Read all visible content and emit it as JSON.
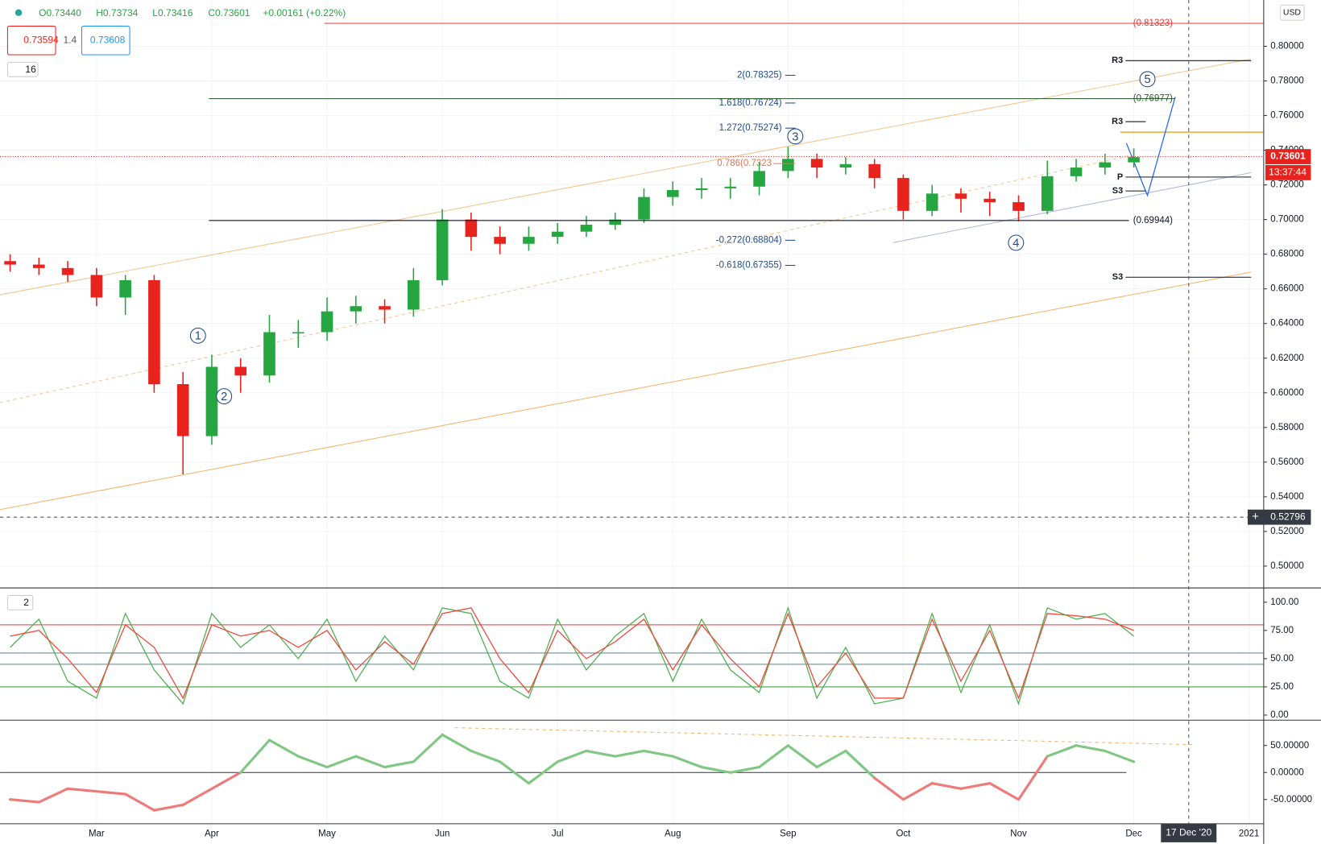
{
  "toolbar": {
    "ohlc": [
      "O0.73440",
      "H0.73734",
      "L0.73416",
      "C0.73601",
      "+0.00161 (+0.22%)"
    ],
    "legend": [
      "0.73594",
      "1.4",
      "0.73608"
    ],
    "main_indicator": "16",
    "stoch_indicator": "2",
    "currency": "USD",
    "last_price": "0.73601",
    "countdown": "13:37:44",
    "crosshair_price": "0.52796",
    "crosshair_date": "17 Dec '20"
  },
  "chart_data": [
    {
      "type": "candlestick",
      "categories": [
        null,
        null,
        null,
        "Mar",
        null,
        null,
        null,
        "Apr",
        null,
        null,
        null,
        "May",
        null,
        null,
        null,
        "Jun",
        null,
        null,
        null,
        "Jul",
        null,
        null,
        null,
        "Aug",
        null,
        null,
        null,
        "Sep",
        null,
        null,
        null,
        "Oct",
        null,
        null,
        null,
        "Nov",
        null,
        null,
        null,
        "Dec",
        null,
        null,
        null,
        "2021"
      ],
      "open": [
        0.676,
        0.674,
        0.672,
        0.668,
        0.655,
        0.665,
        0.605,
        0.575,
        0.615,
        0.61,
        0.635,
        0.635,
        0.647,
        0.65,
        0.648,
        0.665,
        0.7,
        0.69,
        0.686,
        0.69,
        0.693,
        0.697,
        0.7,
        0.713,
        0.717,
        0.718,
        0.719,
        0.728,
        0.735,
        0.73,
        0.732,
        0.724,
        0.705,
        0.715,
        0.712,
        0.71,
        0.705,
        0.725,
        0.73,
        0.733,
        null,
        null,
        null,
        null
      ],
      "high": [
        0.68,
        0.678,
        0.676,
        0.672,
        0.668,
        0.668,
        0.612,
        0.622,
        0.62,
        0.645,
        0.642,
        0.655,
        0.656,
        0.654,
        0.672,
        0.706,
        0.704,
        0.696,
        0.696,
        0.698,
        0.702,
        0.704,
        0.718,
        0.722,
        0.724,
        0.724,
        0.733,
        0.742,
        0.738,
        0.736,
        0.735,
        0.726,
        0.72,
        0.718,
        0.716,
        0.714,
        0.734,
        0.735,
        0.738,
        0.741,
        null,
        null,
        null,
        null
      ],
      "low": [
        0.67,
        0.668,
        0.664,
        0.65,
        0.645,
        0.6,
        0.553,
        0.57,
        0.6,
        0.606,
        0.626,
        0.63,
        0.64,
        0.64,
        0.644,
        0.662,
        0.682,
        0.68,
        0.682,
        0.686,
        0.69,
        0.694,
        0.698,
        0.708,
        0.712,
        0.712,
        0.714,
        0.724,
        0.724,
        0.726,
        0.718,
        0.7,
        0.702,
        0.704,
        0.702,
        0.699,
        0.703,
        0.722,
        0.726,
        0.73,
        null,
        null,
        null,
        null
      ],
      "close": [
        0.674,
        0.672,
        0.668,
        0.655,
        0.665,
        0.605,
        0.575,
        0.615,
        0.61,
        0.635,
        0.635,
        0.647,
        0.65,
        0.648,
        0.665,
        0.7,
        0.69,
        0.686,
        0.69,
        0.693,
        0.697,
        0.7,
        0.713,
        0.717,
        0.718,
        0.719,
        0.728,
        0.735,
        0.73,
        0.732,
        0.724,
        0.705,
        0.715,
        0.712,
        0.71,
        0.705,
        0.725,
        0.73,
        0.733,
        0.736,
        null,
        null,
        null,
        null
      ],
      "up_color": "#26a641",
      "down_color": "#e8221c",
      "ylim": [
        0.4874,
        0.8267
      ],
      "yticks": [
        {
          "value": 0.5,
          "label": "0.50000"
        },
        {
          "value": 0.52,
          "label": "0.52000"
        },
        {
          "value": 0.54,
          "label": "0.54000"
        },
        {
          "value": 0.56,
          "label": "0.56000"
        },
        {
          "value": 0.58,
          "label": "0.58000"
        },
        {
          "value": 0.6,
          "label": "0.60000"
        },
        {
          "value": 0.62,
          "label": "0.62000"
        },
        {
          "value": 0.64,
          "label": "0.64000"
        },
        {
          "value": 0.66,
          "label": "0.66000"
        },
        {
          "value": 0.68,
          "label": "0.68000"
        },
        {
          "value": 0.7,
          "label": "0.70000"
        },
        {
          "value": 0.72,
          "label": "0.72000"
        },
        {
          "value": 0.74,
          "label": "0.74000"
        },
        {
          "value": 0.76,
          "label": "0.76000"
        },
        {
          "value": 0.78,
          "label": "0.78000"
        },
        {
          "value": 0.8,
          "label": "0.80000"
        }
      ],
      "grid": true,
      "levels": [
        {
          "label": "(0.81323)",
          "value": 0.81323,
          "color": "#e53935"
        },
        {
          "label": "2(0.78325)",
          "value": 0.78325,
          "color": "#1e4a8c"
        },
        {
          "label": "1.618(0.76724)",
          "value": 0.76724,
          "color": "#1e4a8c"
        },
        {
          "label": "1.272(0.75274)",
          "value": 0.75274,
          "color": "#1e4a8c"
        },
        {
          "label": "0.786(0.7323",
          "value": 0.7323,
          "color": "#e5734f"
        },
        {
          "label": "-0.272(0.68804)",
          "value": 0.68804,
          "color": "#1e4a8c"
        },
        {
          "label": "-0.618(0.67355)",
          "value": 0.67355,
          "color": "#1e4a8c"
        },
        {
          "label": "(0.76977)",
          "value": 0.76977,
          "color": "#2e5e2e"
        },
        {
          "label": "(0.69944)",
          "value": 0.69944,
          "color": "#131722"
        }
      ],
      "pivots": [
        {
          "label": "R3",
          "value": 0.7917
        },
        {
          "label": "R3",
          "value": 0.7565
        },
        {
          "label": "P",
          "value": 0.7245
        },
        {
          "label": "S3",
          "value": 0.7165
        },
        {
          "label": "S3",
          "value": 0.6667
        }
      ],
      "waves": [
        {
          "label": "1",
          "value": 0.633
        },
        {
          "label": "2",
          "value": 0.598
        },
        {
          "label": "3",
          "value": 0.748
        },
        {
          "label": "4",
          "value": 0.6866
        },
        {
          "label": "5",
          "value": 0.781
        }
      ]
    },
    {
      "type": "line",
      "series": [
        {
          "color": "#4caf50",
          "values": [
            60,
            85,
            30,
            15,
            90,
            40,
            10,
            90,
            60,
            80,
            50,
            85,
            30,
            70,
            40,
            95,
            90,
            30,
            15,
            85,
            40,
            70,
            90,
            30,
            85,
            40,
            20,
            95,
            15,
            60,
            10,
            15,
            90,
            20,
            80,
            10,
            95,
            85,
            90,
            70,
            null,
            null,
            null,
            null
          ]
        },
        {
          "color": "#f44336",
          "values": [
            70,
            75,
            50,
            20,
            80,
            60,
            15,
            80,
            70,
            75,
            60,
            75,
            40,
            65,
            45,
            90,
            95,
            50,
            20,
            75,
            50,
            65,
            85,
            40,
            80,
            50,
            25,
            90,
            25,
            55,
            15,
            15,
            85,
            30,
            75,
            15,
            90,
            88,
            85,
            75,
            null,
            null,
            null,
            null
          ]
        }
      ],
      "hlines": [
        {
          "value": 80,
          "color": "#e53935"
        },
        {
          "value": 55,
          "color": "#607d8b"
        },
        {
          "value": 45,
          "color": "#607d8b"
        },
        {
          "value": 25,
          "color": "#43a047"
        }
      ],
      "ylim": [
        -4.5,
        111.2
      ],
      "yticks": [
        {
          "value": 0,
          "label": "0.00"
        },
        {
          "value": 25,
          "label": "25.00"
        },
        {
          "value": 50,
          "label": "50.00"
        },
        {
          "value": 75,
          "label": "75.00"
        },
        {
          "value": 100,
          "label": "100.00"
        }
      ]
    },
    {
      "type": "line",
      "values": [
        -50,
        -55,
        -30,
        -35,
        -40,
        -70,
        -60,
        -30,
        0,
        60,
        30,
        10,
        30,
        10,
        20,
        70,
        40,
        20,
        -20,
        20,
        40,
        30,
        40,
        30,
        10,
        0,
        10,
        50,
        10,
        40,
        -10,
        -50,
        -20,
        -30,
        -20,
        -50,
        30,
        50,
        40,
        20,
        null,
        null,
        null,
        null
      ],
      "positive_color": "#81c784",
      "negative_color": "#ef7a7a",
      "ylim": [
        -95,
        97
      ],
      "yticks": [
        {
          "value": -50,
          "label": "-50.00000"
        },
        {
          "value": 0,
          "label": "0.00000"
        },
        {
          "value": 50,
          "label": "50.00000"
        }
      ]
    }
  ]
}
